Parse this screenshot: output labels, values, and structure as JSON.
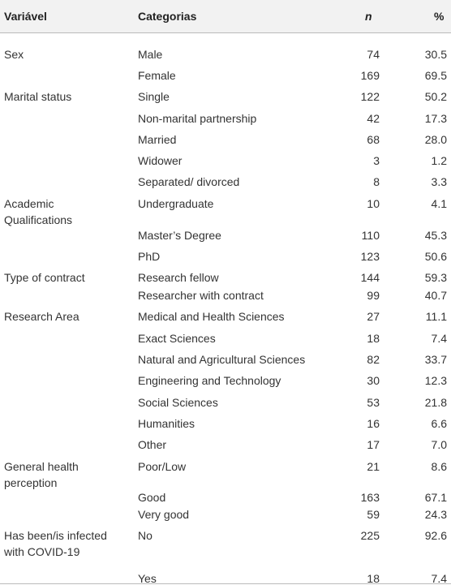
{
  "table": {
    "header": [
      "Variável",
      "Categorias",
      "n",
      "%"
    ],
    "rows": [
      [
        "Sex",
        "Male",
        74,
        "30.5"
      ],
      [
        null,
        "Female",
        169,
        "69.5"
      ],
      [
        "Marital status",
        "Single",
        122,
        "50.2"
      ],
      [
        null,
        "Non-marital partnership",
        42,
        "17.3"
      ],
      [
        null,
        "Married",
        68,
        "28.0"
      ],
      [
        null,
        "Widower",
        3,
        "1.2"
      ],
      [
        null,
        "Separated/ divorced",
        8,
        "3.3"
      ],
      [
        "Academic Qualifications",
        "Undergraduate",
        10,
        "4.1"
      ],
      [
        null,
        "Master’s Degree",
        110,
        "45.3"
      ],
      [
        null,
        "PhD",
        123,
        "50.6"
      ],
      [
        "Type of contract",
        "Research fellow",
        144,
        "59.3"
      ],
      [
        null,
        "Researcher with contract",
        99,
        "40.7"
      ],
      [
        "Research Area",
        "Medical and Health Sciences",
        27,
        "11.1"
      ],
      [
        null,
        "Exact Sciences",
        18,
        "7.4"
      ],
      [
        null,
        "Natural and Agricultural Sciences",
        82,
        "33.7"
      ],
      [
        null,
        "Engineering and Technology",
        30,
        "12.3"
      ],
      [
        null,
        "Social Sciences",
        53,
        "21.8"
      ],
      [
        null,
        "Humanities",
        16,
        "6.6"
      ],
      [
        null,
        "Other",
        17,
        "7.0"
      ],
      [
        "General health perception",
        "Poor/Low",
        21,
        "8.6"
      ],
      [
        null,
        "Good",
        163,
        "67.1"
      ],
      [
        null,
        "Very good",
        59,
        "24.3"
      ],
      [
        "Has been/is infected with COVID-19",
        "No",
        225,
        "92.6"
      ],
      [
        null,
        "Yes",
        18,
        "7.4"
      ]
    ]
  }
}
